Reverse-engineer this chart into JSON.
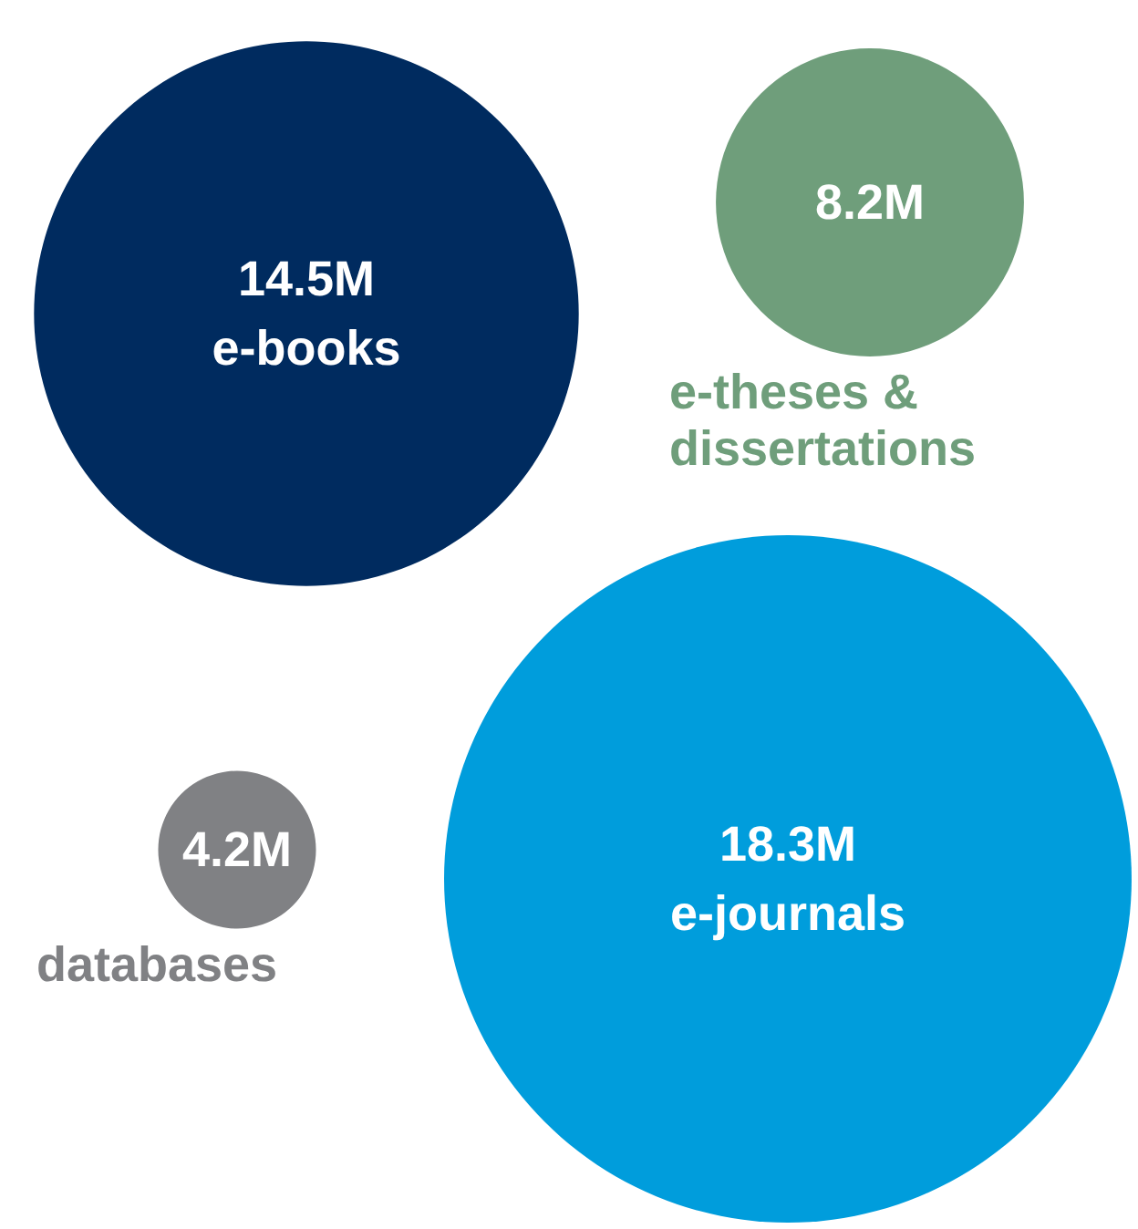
{
  "chart_data": {
    "type": "other",
    "categories": [
      "e-books",
      "e-theses & dissertations",
      "e-journals",
      "databases"
    ],
    "values": [
      14.5,
      8.2,
      18.3,
      4.2
    ],
    "value_labels": [
      "14.5M",
      "8.2M",
      "18.3M",
      "4.2M"
    ],
    "colors": [
      "#002b5f",
      "#6f9e7b",
      "#009ddc",
      "#808184"
    ]
  }
}
